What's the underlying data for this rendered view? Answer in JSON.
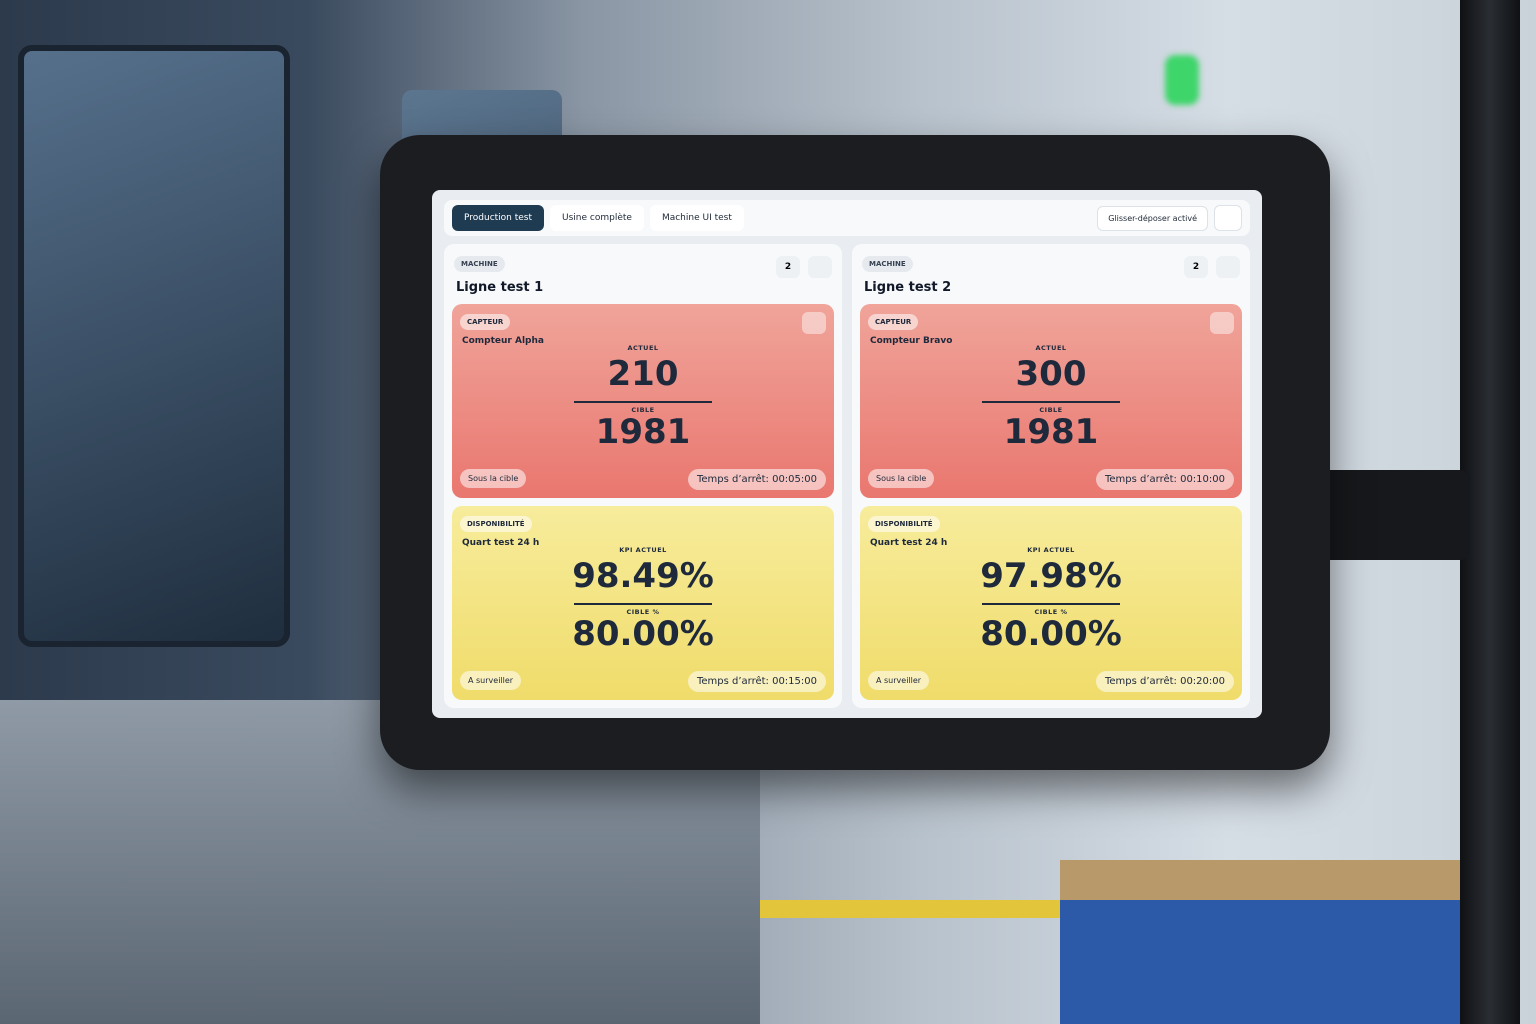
{
  "tabs": [
    "Production test",
    "Usine complète",
    "Machine UI test"
  ],
  "lock_label": "Glisser-déposer activé",
  "panels": [
    {
      "tag": "MACHINE",
      "title": "Ligne test 1",
      "count": "2",
      "cards": [
        {
          "tag": "CAPTEUR",
          "name": "Compteur Alpha",
          "current_label": "ACTUEL",
          "current": "210",
          "target_label": "CIBLE",
          "target": "1981",
          "status": "Sous la cible",
          "downtime": "Temps d’arrêt: 00:05:00"
        },
        {
          "tag": "DISPONIBILITÉ",
          "name": "Quart test 24 h",
          "current_label": "KPI ACTUEL",
          "current": "98.49%",
          "target_label": "CIBLE %",
          "target": "80.00%",
          "status": "A surveiller",
          "downtime": "Temps d’arrêt: 00:15:00"
        }
      ]
    },
    {
      "tag": "MACHINE",
      "title": "Ligne test 2",
      "count": "2",
      "cards": [
        {
          "tag": "CAPTEUR",
          "name": "Compteur Bravo",
          "current_label": "ACTUEL",
          "current": "300",
          "target_label": "CIBLE",
          "target": "1981",
          "status": "Sous la cible",
          "downtime": "Temps d’arrêt: 00:10:00"
        },
        {
          "tag": "DISPONIBILITÉ",
          "name": "Quart test 24 h",
          "current_label": "KPI ACTUEL",
          "current": "97.98%",
          "target_label": "CIBLE %",
          "target": "80.00%",
          "status": "A surveiller",
          "downtime": "Temps d’arrêt: 00:20:00"
        }
      ]
    }
  ]
}
